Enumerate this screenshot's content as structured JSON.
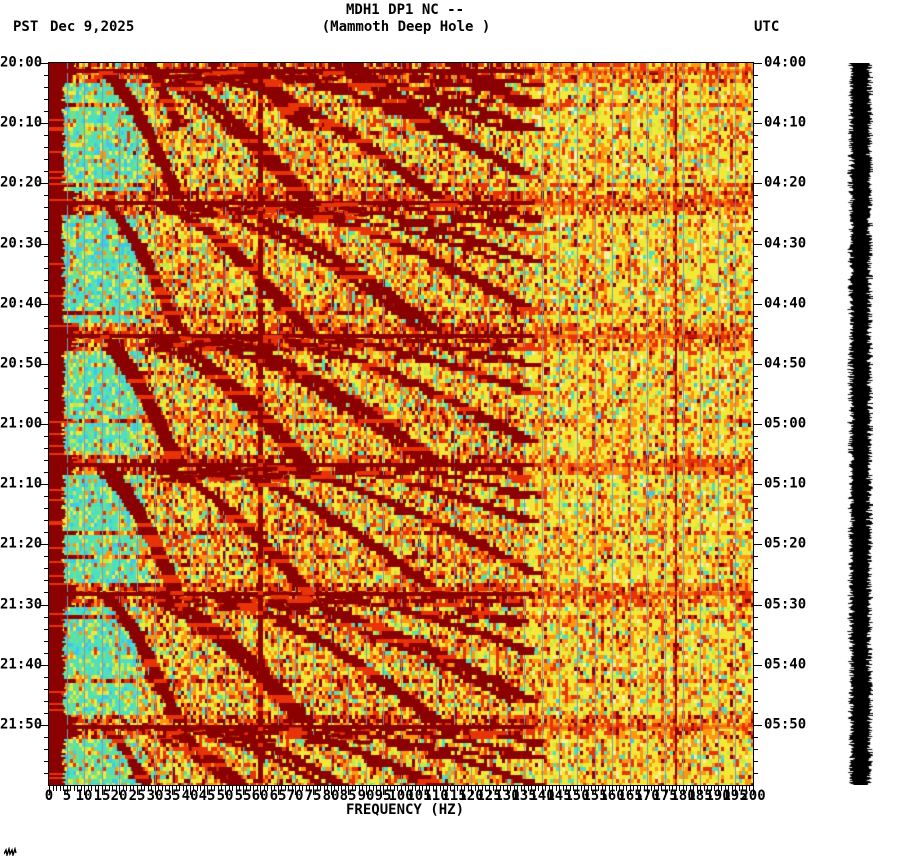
{
  "header": {
    "title": "MDH1 DP1 NC --",
    "subtitle": "(Mammoth Deep Hole )",
    "tz_left": "PST",
    "date": "Dec 9,2025",
    "tz_right": "UTC"
  },
  "chart_data": {
    "type": "heatmap",
    "subtype": "seismic-spectrogram",
    "title": "MDH1 DP1 NC --",
    "subtitle": "(Mammoth Deep Hole )",
    "xlabel": "FREQUENCY (HZ)",
    "x_axis": {
      "min": 0,
      "max": 200,
      "unit": "Hz",
      "major_tick_step": 5,
      "minor_tick_step": 1,
      "tick_labels": [
        "0",
        "5",
        "10",
        "15",
        "20",
        "25",
        "30",
        "35",
        "40",
        "45",
        "50",
        "55",
        "60",
        "65",
        "70",
        "75",
        "80",
        "85",
        "90",
        "95",
        "100",
        "105",
        "110",
        "115",
        "120",
        "125",
        "130",
        "135",
        "140",
        "145",
        "150",
        "155",
        "160",
        "165",
        "170",
        "175",
        "180",
        "185",
        "190",
        "195",
        "200"
      ]
    },
    "y_axis_left": {
      "timezone": "PST",
      "date": "Dec 9,2025",
      "start": "20:00",
      "end": "22:00",
      "major_tick_minutes": 10,
      "minor_tick_minutes": 2,
      "tick_labels": [
        "20:00",
        "20:10",
        "20:20",
        "20:30",
        "20:40",
        "20:50",
        "21:00",
        "21:10",
        "21:20",
        "21:30",
        "21:40",
        "21:50"
      ]
    },
    "y_axis_right": {
      "timezone": "UTC",
      "start": "04:00",
      "end": "06:00",
      "tick_labels": [
        "04:00",
        "04:10",
        "04:20",
        "04:30",
        "04:40",
        "04:50",
        "05:00",
        "05:10",
        "05:20",
        "05:30",
        "05:40",
        "05:50"
      ]
    },
    "features": {
      "dc_band_hz": [
        0,
        4
      ],
      "quiet_teal_band_hz": [
        4,
        30
      ],
      "mains_hum_line_hz": 60,
      "narrowband_line_hz": 178,
      "glide_fan_events_min_from_start": [
        -11,
        1,
        23,
        45,
        66.5,
        88,
        110
      ],
      "glide_fan_events_pst": [
        "19:49",
        "20:01",
        "20:23",
        "20:45",
        "21:07",
        "21:28",
        "21:50"
      ],
      "harmonics_per_event": 7,
      "glide_start_hz": 15,
      "glide_rise_hz": 22,
      "glide_duration_min": 21.5,
      "arc_ceiling_hz": 138,
      "duration_min": 120
    },
    "palette": {
      "darkred": "#8b0000",
      "red": "#e83208",
      "orange": "#ff9510",
      "yellow": "#f2e838",
      "paleyellow": "#f8f2a0",
      "yellowgreen": "#c2e84a",
      "green": "#72e08a",
      "teal": "#4ce0c0",
      "cyan": "#3ec8ee",
      "blue": "#2898e0",
      "gridline": "#7f98a8"
    },
    "side_trace": {
      "description": "clipped-amplitude-seismogram-bar",
      "color": "#000000"
    }
  }
}
